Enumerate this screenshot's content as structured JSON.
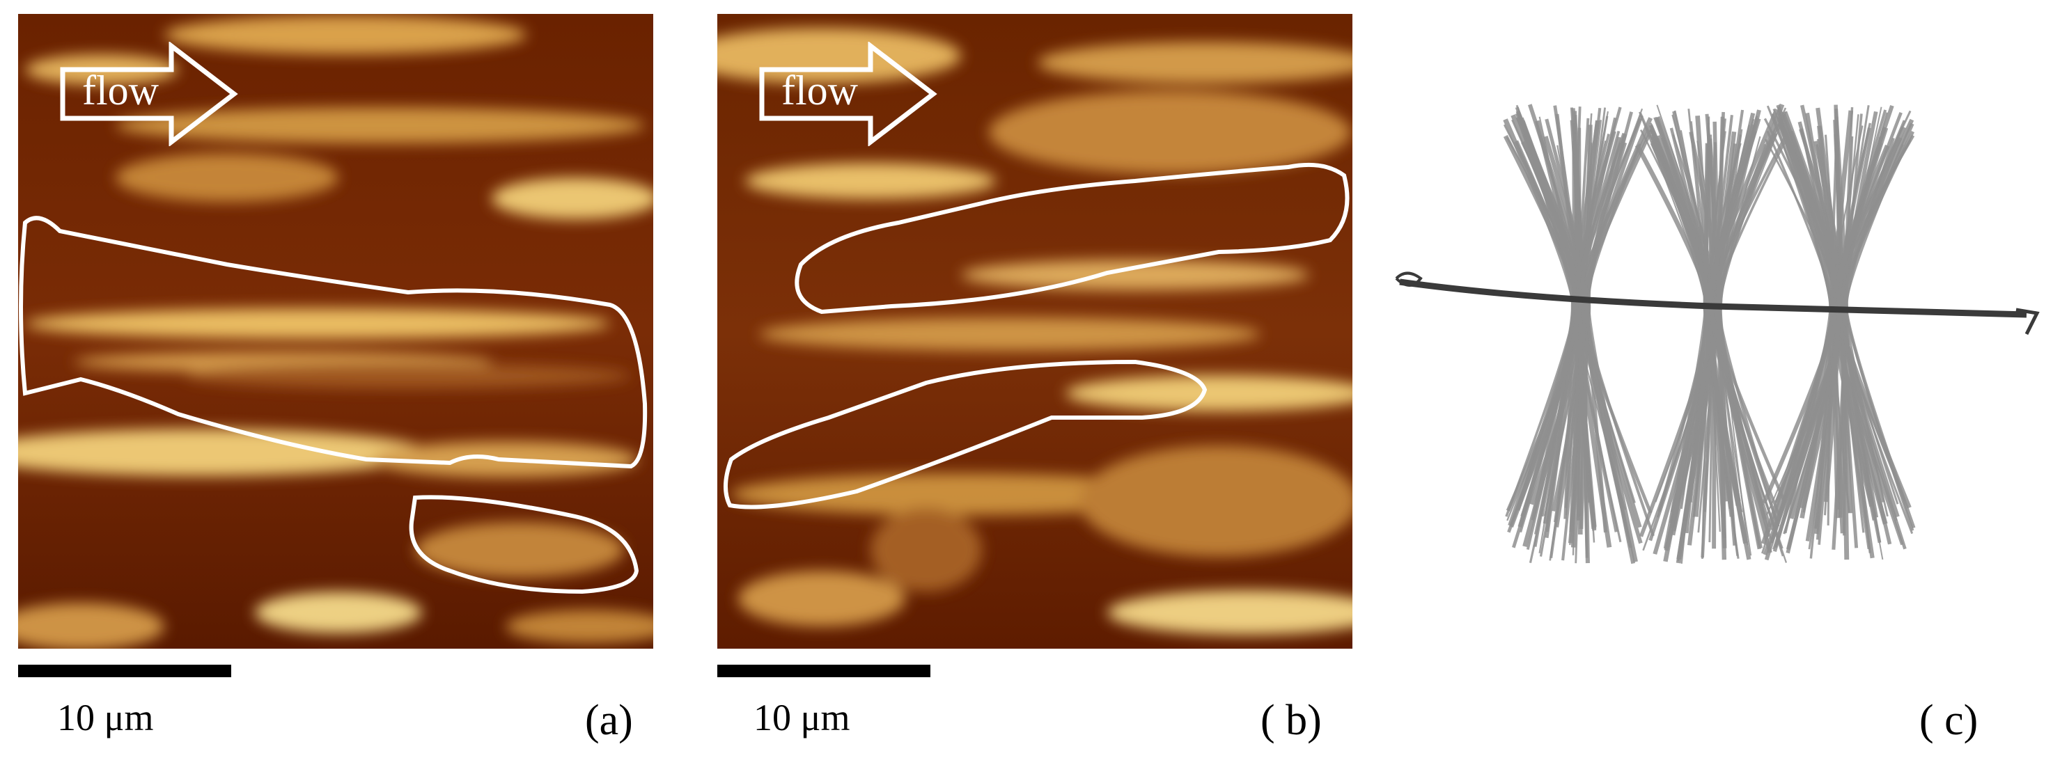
{
  "panels": [
    {
      "id": "a",
      "flow_label": "flow",
      "scale_label": "10 μm",
      "panel_label": "(a)"
    },
    {
      "id": "b",
      "flow_label": "flow",
      "scale_label": "10 μm",
      "panel_label": "( b)"
    },
    {
      "id": "c",
      "panel_label": "( c)"
    }
  ],
  "colors": {
    "afm_dark": "#5a1800",
    "afm_mid": "#a0521a",
    "afm_bright": "#f3d27a",
    "outline": "#ffffff",
    "fiber": "#8f8f8f",
    "thread": "#3a3a3a"
  }
}
